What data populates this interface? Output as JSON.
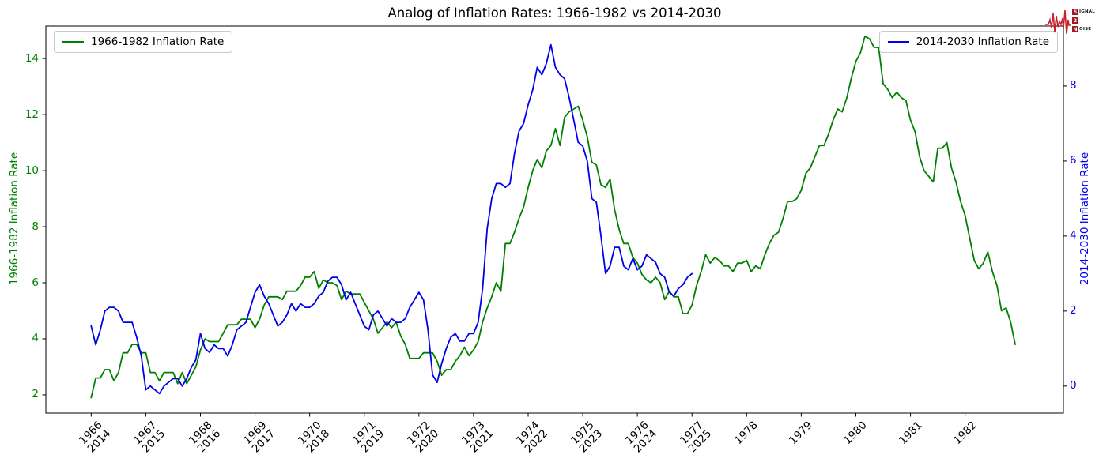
{
  "logo": {
    "rows": [
      {
        "boxed": "S",
        "rest": "IGNAL"
      },
      {
        "boxed": "2",
        "rest": ""
      },
      {
        "boxed": "N",
        "rest": "OISE"
      }
    ],
    "waveform_color": "#c5232b",
    "box_color": "#9e1b24"
  },
  "chart_data": {
    "type": "line",
    "title": "Analog of Inflation Rates: 1966-1982 vs 2014-2030",
    "grid": false,
    "x_axis": {
      "xlim": [
        -0.83,
        17.8
      ],
      "tick_labels": [
        "1966\n2014",
        "1967\n2015",
        "1968\n2016",
        "1969\n2017",
        "1970\n2018",
        "1971\n2019",
        "1972\n2020",
        "1973\n2021",
        "1974\n2022",
        "1975\n2023",
        "1976\n2024",
        "1977\n2025",
        "1978",
        "1979",
        "1980",
        "1981",
        "1982"
      ]
    },
    "left_axis": {
      "label": "1966-1982 Inflation Rate",
      "color": "#008000",
      "ticks": [
        2,
        4,
        6,
        8,
        10,
        12,
        14
      ],
      "ylim": [
        1.35,
        15.16
      ]
    },
    "right_axis": {
      "label": "2014-2030 Inflation Rate",
      "color": "#0000ee",
      "ticks": [
        0,
        2,
        4,
        6,
        8
      ],
      "ylim": [
        -0.72,
        9.6
      ]
    },
    "legend_left_position": "upper left",
    "legend_right_position": "upper right",
    "series": [
      {
        "name": "1966-1982 Inflation Rate",
        "color": "#008000",
        "axis": "left",
        "start": "1966-01",
        "frequency": "monthly",
        "values": [
          1.9,
          2.6,
          2.6,
          2.9,
          2.9,
          2.5,
          2.8,
          3.5,
          3.5,
          3.8,
          3.8,
          3.5,
          3.5,
          2.8,
          2.8,
          2.5,
          2.8,
          2.8,
          2.8,
          2.4,
          2.8,
          2.4,
          2.7,
          3.0,
          3.6,
          4.0,
          3.9,
          3.9,
          3.9,
          4.2,
          4.5,
          4.5,
          4.5,
          4.7,
          4.7,
          4.7,
          4.4,
          4.7,
          5.2,
          5.5,
          5.5,
          5.5,
          5.4,
          5.7,
          5.7,
          5.7,
          5.9,
          6.2,
          6.2,
          6.4,
          5.8,
          6.1,
          6.0,
          6.0,
          5.9,
          5.4,
          5.7,
          5.6,
          5.6,
          5.6,
          5.3,
          5.0,
          4.7,
          4.2,
          4.4,
          4.6,
          4.4,
          4.6,
          4.1,
          3.8,
          3.3,
          3.3,
          3.3,
          3.5,
          3.5,
          3.5,
          3.2,
          2.7,
          2.9,
          2.9,
          3.2,
          3.4,
          3.7,
          3.4,
          3.6,
          3.9,
          4.6,
          5.1,
          5.5,
          6.0,
          5.7,
          7.4,
          7.4,
          7.8,
          8.3,
          8.7,
          9.4,
          10.0,
          10.4,
          10.1,
          10.7,
          10.9,
          11.5,
          10.9,
          11.9,
          12.1,
          12.2,
          12.3,
          11.8,
          11.2,
          10.3,
          10.2,
          9.5,
          9.4,
          9.7,
          8.6,
          7.9,
          7.4,
          7.4,
          6.9,
          6.7,
          6.3,
          6.1,
          6.0,
          6.2,
          6.0,
          5.4,
          5.7,
          5.5,
          5.5,
          4.9,
          4.9,
          5.2,
          5.9,
          6.4,
          7.0,
          6.7,
          6.9,
          6.8,
          6.6,
          6.6,
          6.4,
          6.7,
          6.7,
          6.8,
          6.4,
          6.6,
          6.5,
          7.0,
          7.4,
          7.7,
          7.8,
          8.3,
          8.9,
          8.9,
          9.0,
          9.3,
          9.9,
          10.1,
          10.5,
          10.9,
          10.9,
          11.3,
          11.8,
          12.2,
          12.1,
          12.6,
          13.3,
          13.9,
          14.2,
          14.8,
          14.7,
          14.4,
          14.4,
          13.1,
          12.9,
          12.6,
          12.8,
          12.6,
          12.5,
          11.8,
          11.4,
          10.5,
          10.0,
          9.8,
          9.6,
          10.8,
          10.8,
          11.0,
          10.1,
          9.6,
          8.9,
          8.4,
          7.6,
          6.8,
          6.5,
          6.7,
          7.1,
          6.4,
          5.9,
          5.0,
          5.1,
          4.6,
          3.8
        ]
      },
      {
        "name": "2014-2030 Inflation Rate",
        "color": "#0000ee",
        "axis": "right",
        "start": "2014-01",
        "frequency": "monthly",
        "values": [
          1.6,
          1.1,
          1.5,
          2.0,
          2.1,
          2.1,
          2.0,
          1.7,
          1.7,
          1.7,
          1.3,
          0.8,
          -0.1,
          0.0,
          -0.1,
          -0.2,
          0.0,
          0.1,
          0.2,
          0.2,
          0.0,
          0.2,
          0.5,
          0.7,
          1.4,
          1.0,
          0.9,
          1.1,
          1.0,
          1.0,
          0.8,
          1.1,
          1.5,
          1.6,
          1.7,
          2.1,
          2.5,
          2.7,
          2.4,
          2.2,
          1.9,
          1.6,
          1.7,
          1.9,
          2.2,
          2.0,
          2.2,
          2.1,
          2.1,
          2.2,
          2.4,
          2.5,
          2.8,
          2.9,
          2.9,
          2.7,
          2.3,
          2.5,
          2.2,
          1.9,
          1.6,
          1.5,
          1.9,
          2.0,
          1.8,
          1.6,
          1.8,
          1.7,
          1.7,
          1.8,
          2.1,
          2.3,
          2.5,
          2.3,
          1.5,
          0.3,
          0.1,
          0.6,
          1.0,
          1.3,
          1.4,
          1.2,
          1.2,
          1.4,
          1.4,
          1.7,
          2.6,
          4.2,
          5.0,
          5.4,
          5.4,
          5.3,
          5.4,
          6.2,
          6.8,
          7.0,
          7.5,
          7.9,
          8.5,
          8.3,
          8.6,
          9.1,
          8.5,
          8.3,
          8.2,
          7.7,
          7.1,
          6.5,
          6.4,
          6.0,
          5.0,
          4.9,
          4.0,
          3.0,
          3.2,
          3.7,
          3.7,
          3.2,
          3.1,
          3.4,
          3.1,
          3.2,
          3.5,
          3.4,
          3.3,
          3.0,
          2.9,
          2.5,
          2.4,
          2.6,
          2.7,
          2.9,
          3.0
        ]
      }
    ]
  }
}
